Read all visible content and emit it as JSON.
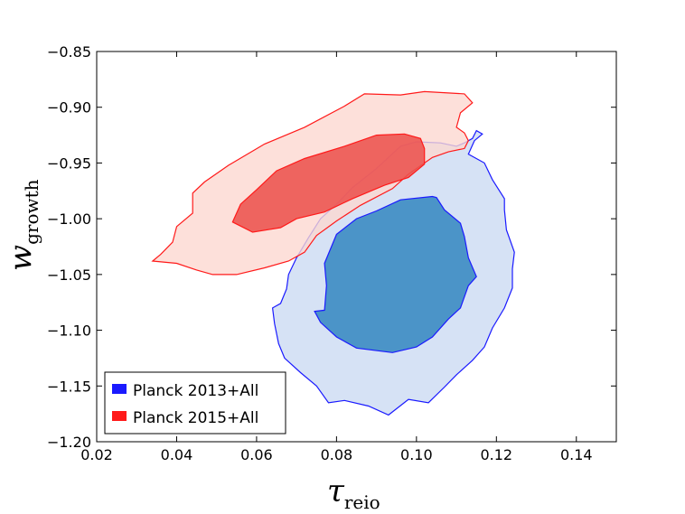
{
  "chart_data": {
    "type": "contour",
    "xlabel": "τ",
    "xlabel_sub": "reio",
    "ylabel": "w",
    "ylabel_sub": "growth",
    "xlim": [
      0.02,
      0.15
    ],
    "ylim": [
      -1.2,
      -0.85
    ],
    "xticks": [
      0.02,
      0.04,
      0.06,
      0.08,
      0.1,
      0.12,
      0.14
    ],
    "xtick_labels": [
      "0.02",
      "0.04",
      "0.06",
      "0.08",
      "0.10",
      "0.12",
      "0.14"
    ],
    "yticks": [
      -0.85,
      -0.9,
      -0.95,
      -1.0,
      -1.05,
      -1.1,
      -1.15,
      -1.2
    ],
    "ytick_labels": [
      "−0.85",
      "−0.90",
      "−0.95",
      "−1.00",
      "−1.05",
      "−1.10",
      "−1.15",
      "−1.20"
    ],
    "legend_position": "lower-left",
    "series": [
      {
        "name": "Planck 2013+All",
        "edge_color": "#1a1aff",
        "inner_fill": "#4b94c8",
        "outer_fill": "#d6e2f5",
        "contour_95": [
          [
            0.115,
            -0.921
          ],
          [
            0.114,
            -0.928
          ],
          [
            0.112,
            -0.932
          ],
          [
            0.11,
            -0.935
          ],
          [
            0.106,
            -0.932
          ],
          [
            0.1,
            -0.931
          ],
          [
            0.096,
            -0.935
          ],
          [
            0.09,
            -0.955
          ],
          [
            0.084,
            -0.972
          ],
          [
            0.08,
            -0.987
          ],
          [
            0.076,
            -1.0
          ],
          [
            0.073,
            -1.017
          ],
          [
            0.07,
            -1.035
          ],
          [
            0.068,
            -1.05
          ],
          [
            0.0675,
            -1.063
          ],
          [
            0.066,
            -1.076
          ],
          [
            0.064,
            -1.08
          ],
          [
            0.0645,
            -1.094
          ],
          [
            0.0655,
            -1.112
          ],
          [
            0.067,
            -1.125
          ],
          [
            0.071,
            -1.138
          ],
          [
            0.075,
            -1.15
          ],
          [
            0.078,
            -1.165
          ],
          [
            0.082,
            -1.163
          ],
          [
            0.088,
            -1.168
          ],
          [
            0.093,
            -1.176
          ],
          [
            0.098,
            -1.162
          ],
          [
            0.103,
            -1.165
          ],
          [
            0.107,
            -1.151
          ],
          [
            0.11,
            -1.14
          ],
          [
            0.114,
            -1.127
          ],
          [
            0.117,
            -1.115
          ],
          [
            0.119,
            -1.098
          ],
          [
            0.122,
            -1.08
          ],
          [
            0.124,
            -1.062
          ],
          [
            0.124,
            -1.045
          ],
          [
            0.1245,
            -1.03
          ],
          [
            0.1225,
            -1.01
          ],
          [
            0.122,
            -0.992
          ],
          [
            0.122,
            -0.982
          ],
          [
            0.119,
            -0.965
          ],
          [
            0.117,
            -0.95
          ],
          [
            0.113,
            -0.942
          ],
          [
            0.1145,
            -0.93
          ],
          [
            0.1165,
            -0.924
          ],
          [
            0.115,
            -0.921
          ]
        ],
        "contour_68": [
          [
            0.104,
            -0.98
          ],
          [
            0.096,
            -0.983
          ],
          [
            0.09,
            -0.993
          ],
          [
            0.085,
            -1.0
          ],
          [
            0.08,
            -1.014
          ],
          [
            0.077,
            -1.04
          ],
          [
            0.0775,
            -1.06
          ],
          [
            0.077,
            -1.082
          ],
          [
            0.0745,
            -1.083
          ],
          [
            0.076,
            -1.093
          ],
          [
            0.08,
            -1.106
          ],
          [
            0.085,
            -1.116
          ],
          [
            0.094,
            -1.12
          ],
          [
            0.1,
            -1.115
          ],
          [
            0.104,
            -1.106
          ],
          [
            0.108,
            -1.09
          ],
          [
            0.111,
            -1.08
          ],
          [
            0.113,
            -1.06
          ],
          [
            0.115,
            -1.052
          ],
          [
            0.113,
            -1.035
          ],
          [
            0.112,
            -1.016
          ],
          [
            0.111,
            -1.004
          ],
          [
            0.107,
            -0.992
          ],
          [
            0.105,
            -0.981
          ],
          [
            0.104,
            -0.98
          ]
        ]
      },
      {
        "name": "Planck 2015+All",
        "edge_color": "#ff1a1a",
        "inner_fill": "#ec524d",
        "outer_fill": "#fcd7cf",
        "contour_95": [
          [
            0.034,
            -1.038
          ],
          [
            0.036,
            -1.032
          ],
          [
            0.039,
            -1.021
          ],
          [
            0.04,
            -1.007
          ],
          [
            0.044,
            -0.995
          ],
          [
            0.044,
            -0.977
          ],
          [
            0.047,
            -0.967
          ],
          [
            0.053,
            -0.952
          ],
          [
            0.062,
            -0.933
          ],
          [
            0.072,
            -0.918
          ],
          [
            0.082,
            -0.899
          ],
          [
            0.087,
            -0.888
          ],
          [
            0.096,
            -0.889
          ],
          [
            0.102,
            -0.886
          ],
          [
            0.112,
            -0.888
          ],
          [
            0.114,
            -0.896
          ],
          [
            0.111,
            -0.905
          ],
          [
            0.11,
            -0.918
          ],
          [
            0.112,
            -0.923
          ],
          [
            0.113,
            -0.93
          ],
          [
            0.112,
            -0.937
          ],
          [
            0.108,
            -0.94
          ],
          [
            0.104,
            -0.945
          ],
          [
            0.098,
            -0.96
          ],
          [
            0.094,
            -0.973
          ],
          [
            0.086,
            -0.988
          ],
          [
            0.08,
            -1.002
          ],
          [
            0.075,
            -1.015
          ],
          [
            0.072,
            -1.03
          ],
          [
            0.068,
            -1.038
          ],
          [
            0.062,
            -1.044
          ],
          [
            0.055,
            -1.05
          ],
          [
            0.049,
            -1.05
          ],
          [
            0.045,
            -1.046
          ],
          [
            0.04,
            -1.04
          ],
          [
            0.034,
            -1.038
          ]
        ],
        "contour_68": [
          [
            0.054,
            -1.003
          ],
          [
            0.056,
            -0.987
          ],
          [
            0.06,
            -0.974
          ],
          [
            0.065,
            -0.957
          ],
          [
            0.072,
            -0.946
          ],
          [
            0.082,
            -0.935
          ],
          [
            0.09,
            -0.925
          ],
          [
            0.097,
            -0.924
          ],
          [
            0.101,
            -0.928
          ],
          [
            0.102,
            -0.937
          ],
          [
            0.102,
            -0.951
          ],
          [
            0.098,
            -0.963
          ],
          [
            0.092,
            -0.97
          ],
          [
            0.084,
            -0.982
          ],
          [
            0.077,
            -0.994
          ],
          [
            0.07,
            -1.0
          ],
          [
            0.066,
            -1.008
          ],
          [
            0.059,
            -1.012
          ],
          [
            0.054,
            -1.003
          ]
        ]
      }
    ]
  }
}
